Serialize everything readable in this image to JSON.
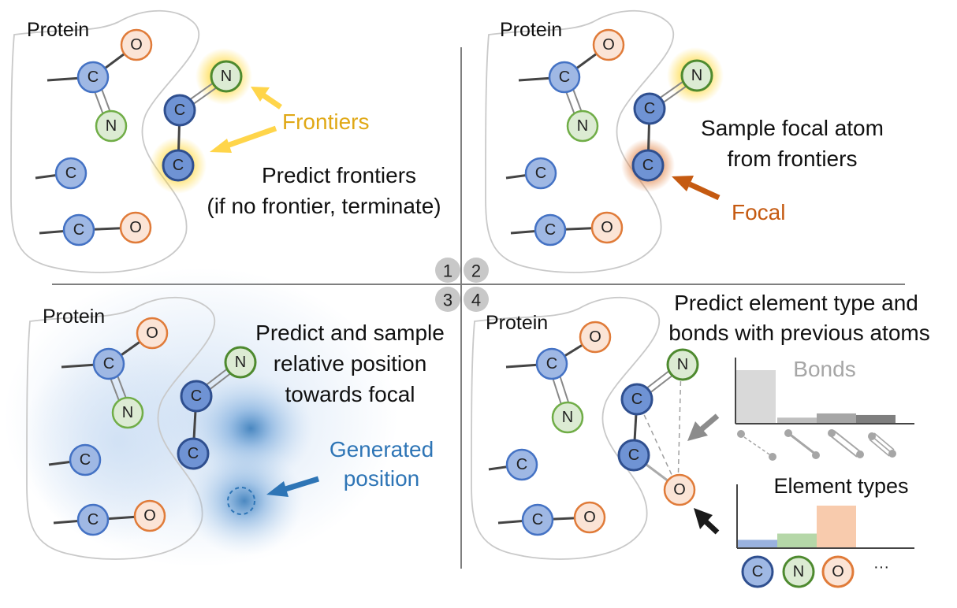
{
  "panels": {
    "p1": {
      "protein_label": "Protein",
      "frontiers_label": "Frontiers",
      "caption_line1": "Predict frontiers",
      "caption_line2": "(if no frontier, terminate)"
    },
    "p2": {
      "protein_label": "Protein",
      "caption_line1": "Sample focal atom",
      "caption_line2": "from frontiers",
      "focal_label": "Focal"
    },
    "p3": {
      "protein_label": "Protein",
      "caption_line1": "Predict and sample",
      "caption_line2": "relative position",
      "caption_line3": "towards focal",
      "generated_line1": "Generated",
      "generated_line2": "position"
    },
    "p4": {
      "protein_label": "Protein",
      "caption_line1": "Predict element type and",
      "caption_line2": "bonds with previous atoms",
      "bonds_title": "Bonds",
      "bonds_levels": [
        1.0,
        0.1,
        0.18,
        0.15
      ],
      "elements_title": "Element types",
      "element_levels": [
        0.18,
        0.33,
        1.0
      ],
      "legend": [
        "C",
        "N",
        "O"
      ],
      "legend_more": "···"
    }
  },
  "step_numbers": [
    "1",
    "2",
    "3",
    "4"
  ],
  "atom_letters": {
    "C": "C",
    "N": "N",
    "O": "O"
  },
  "colors": {
    "carbon_fill": "#9fb8e4",
    "carbon_stroke": "#4472c4",
    "carbon_dark_fill": "#6f93d4",
    "carbon_dark_stroke": "#2f4f8f",
    "nitrogen_fill": "#dcebd3",
    "nitrogen_stroke": "#70ad47",
    "nitrogen_dark_stroke": "#4e8a2f",
    "oxygen_fill": "#fbe4d6",
    "oxygen_stroke": "#e07b39",
    "frontier_yellow": "#f5c518",
    "focal_orange": "#c55a11",
    "generated_blue": "#2e75b6",
    "step_badge": "#c8c8c8"
  }
}
